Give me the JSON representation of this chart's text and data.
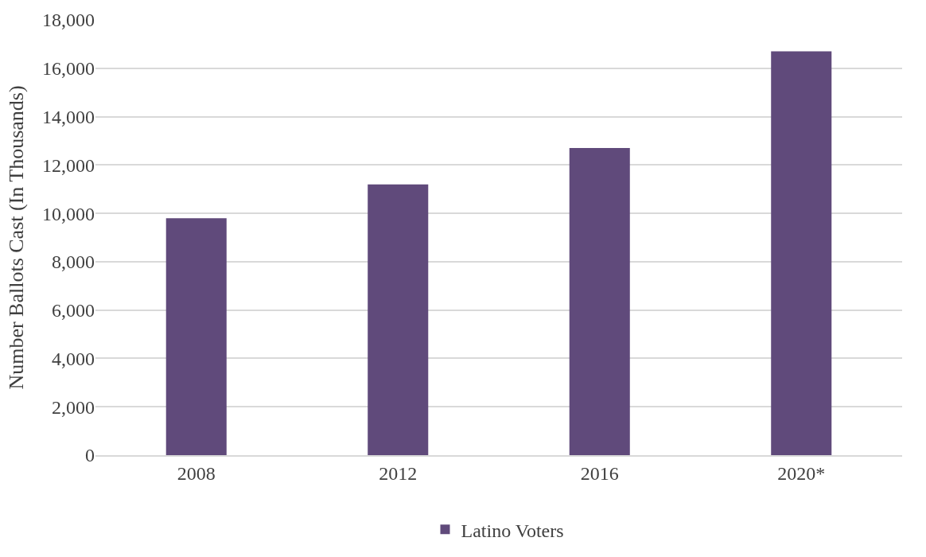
{
  "chart_data": {
    "type": "bar",
    "categories": [
      "2008",
      "2012",
      "2016",
      "2020*"
    ],
    "series": [
      {
        "name": "Latino Voters",
        "color": "#604a7b",
        "values": [
          9800,
          11200,
          12700,
          16700
        ]
      }
    ],
    "ylabel": "Number Ballots Cast (In Thousands)",
    "ylim": [
      0,
      18000
    ],
    "yticks": [
      {
        "value": 0,
        "label": "0"
      },
      {
        "value": 2000,
        "label": "2,000"
      },
      {
        "value": 4000,
        "label": "4,000"
      },
      {
        "value": 6000,
        "label": "6,000"
      },
      {
        "value": 8000,
        "label": "8,000"
      },
      {
        "value": 10000,
        "label": "10,000"
      },
      {
        "value": 12000,
        "label": "12,000"
      },
      {
        "value": 14000,
        "label": "14,000"
      },
      {
        "value": 16000,
        "label": "16,000"
      },
      {
        "value": 18000,
        "label": "18,000"
      }
    ],
    "grid": "y",
    "legend": "bottom"
  }
}
